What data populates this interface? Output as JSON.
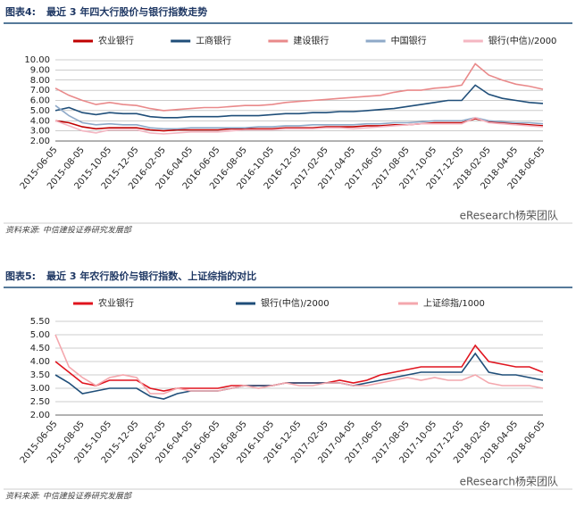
{
  "chart_data": [
    {
      "type": "line",
      "figure_label": "图表4:",
      "title": "最近 3 年四大行股价与银行指数走势",
      "categories": [
        "2015-06-05",
        null,
        "2015-08-05",
        null,
        "2015-10-05",
        null,
        "2015-12-05",
        null,
        "2016-02-05",
        null,
        "2016-04-05",
        null,
        "2016-06-05",
        null,
        "2016-08-05",
        null,
        "2016-10-05",
        null,
        "2016-12-05",
        null,
        "2017-02-05",
        null,
        "2017-04-05",
        null,
        "2017-06-05",
        null,
        "2017-08-05",
        null,
        "2017-10-05",
        null,
        "2017-12-05",
        null,
        "2018-02-05",
        null,
        "2018-04-05",
        null,
        "2018-06-05"
      ],
      "series": [
        {
          "name": "农业银行",
          "color": "#c00000",
          "values": [
            4.0,
            3.8,
            3.4,
            3.2,
            3.3,
            3.3,
            3.3,
            3.1,
            3.0,
            3.1,
            3.1,
            3.1,
            3.1,
            3.2,
            3.2,
            3.2,
            3.2,
            3.3,
            3.3,
            3.3,
            3.4,
            3.4,
            3.4,
            3.5,
            3.5,
            3.6,
            3.6,
            3.7,
            3.8,
            3.8,
            3.8,
            4.2,
            3.9,
            3.8,
            3.7,
            3.6,
            3.5
          ]
        },
        {
          "name": "工商银行",
          "color": "#1f4e79",
          "values": [
            5.0,
            5.3,
            4.8,
            4.6,
            4.8,
            4.7,
            4.7,
            4.4,
            4.3,
            4.3,
            4.4,
            4.4,
            4.4,
            4.5,
            4.5,
            4.5,
            4.6,
            4.7,
            4.7,
            4.8,
            4.8,
            4.9,
            4.9,
            5.0,
            5.1,
            5.2,
            5.4,
            5.6,
            5.8,
            6.0,
            6.0,
            7.5,
            6.6,
            6.2,
            6.0,
            5.8,
            5.7
          ]
        },
        {
          "name": "建设银行",
          "color": "#e9898a",
          "values": [
            7.2,
            6.5,
            6.0,
            5.6,
            5.8,
            5.6,
            5.5,
            5.2,
            5.0,
            5.1,
            5.2,
            5.3,
            5.3,
            5.4,
            5.5,
            5.5,
            5.6,
            5.8,
            5.9,
            6.0,
            6.1,
            6.2,
            6.3,
            6.4,
            6.5,
            6.8,
            7.0,
            7.0,
            7.2,
            7.3,
            7.5,
            9.6,
            8.5,
            8.0,
            7.6,
            7.4,
            7.1
          ]
        },
        {
          "name": "中国银行",
          "color": "#8ea9c8",
          "values": [
            5.5,
            4.5,
            3.8,
            3.6,
            3.7,
            3.6,
            3.6,
            3.3,
            3.2,
            3.2,
            3.3,
            3.3,
            3.3,
            3.3,
            3.3,
            3.4,
            3.4,
            3.5,
            3.5,
            3.6,
            3.6,
            3.6,
            3.6,
            3.7,
            3.7,
            3.8,
            3.8,
            3.9,
            4.0,
            4.0,
            4.0,
            4.3,
            4.0,
            3.9,
            3.8,
            3.8,
            3.7
          ]
        },
        {
          "name": "银行(中信)/2000",
          "color": "#f4b6c2",
          "values": [
            4.0,
            3.5,
            3.0,
            2.8,
            3.1,
            3.1,
            3.1,
            2.8,
            2.7,
            2.8,
            2.9,
            2.9,
            2.9,
            3.0,
            3.1,
            3.1,
            3.1,
            3.2,
            3.2,
            3.2,
            3.3,
            3.3,
            3.2,
            3.3,
            3.4,
            3.5,
            3.6,
            3.7,
            3.7,
            3.7,
            3.7,
            4.3,
            3.8,
            3.7,
            3.6,
            3.5,
            3.4
          ]
        }
      ],
      "ylim": [
        2,
        10
      ],
      "yticks": [
        {
          "value": 2,
          "label": "2.00"
        },
        {
          "value": 3,
          "label": "3.00"
        },
        {
          "value": 4,
          "label": "4.00"
        },
        {
          "value": 5,
          "label": "5.00"
        },
        {
          "value": 6,
          "label": "6.00"
        },
        {
          "value": 7,
          "label": "7.00"
        },
        {
          "value": 8,
          "label": "8.00"
        },
        {
          "value": 9,
          "label": "9.00"
        },
        {
          "value": 10,
          "label": "10.00"
        }
      ],
      "grid": true,
      "source": "资料来源: 中信建投证券研究发展部",
      "watermark": "eResearch杨荣团队"
    },
    {
      "type": "line",
      "figure_label": "图表5:",
      "title": "最近 3 年农行股价与银行指数、上证综指的对比",
      "categories": [
        "2015-06-05",
        null,
        "2015-08-05",
        null,
        "2015-10-05",
        null,
        "2015-12-05",
        null,
        "2016-02-05",
        null,
        "2016-04-05",
        null,
        "2016-06-05",
        null,
        "2016-08-05",
        null,
        "2016-10-05",
        null,
        "2016-12-05",
        null,
        "2017-02-05",
        null,
        "2017-04-05",
        null,
        "2017-06-05",
        null,
        "2017-08-05",
        null,
        "2017-10-05",
        null,
        "2017-12-05",
        null,
        "2018-02-05",
        null,
        "2018-04-05",
        null,
        "2018-06-05"
      ],
      "series": [
        {
          "name": "农业银行",
          "color": "#e0141e",
          "values": [
            4.0,
            3.6,
            3.2,
            3.1,
            3.3,
            3.3,
            3.3,
            3.0,
            2.9,
            3.0,
            3.0,
            3.0,
            3.0,
            3.1,
            3.1,
            3.1,
            3.1,
            3.2,
            3.2,
            3.2,
            3.2,
            3.3,
            3.2,
            3.3,
            3.5,
            3.6,
            3.7,
            3.8,
            3.8,
            3.8,
            3.8,
            4.6,
            4.0,
            3.9,
            3.8,
            3.8,
            3.6
          ]
        },
        {
          "name": "银行(中信)/2000",
          "color": "#1f4e79",
          "values": [
            3.5,
            3.2,
            2.8,
            2.9,
            3.0,
            3.0,
            3.0,
            2.7,
            2.6,
            2.8,
            2.9,
            2.9,
            2.9,
            3.0,
            3.1,
            3.1,
            3.1,
            3.2,
            3.2,
            3.2,
            3.2,
            3.2,
            3.1,
            3.2,
            3.3,
            3.4,
            3.5,
            3.6,
            3.6,
            3.6,
            3.6,
            4.3,
            3.6,
            3.5,
            3.5,
            3.4,
            3.3
          ]
        },
        {
          "name": "上证综指/1000",
          "color": "#f4a7ad",
          "values": [
            5.0,
            3.8,
            3.4,
            3.1,
            3.4,
            3.5,
            3.4,
            2.8,
            2.8,
            3.0,
            2.9,
            2.9,
            2.9,
            3.0,
            3.1,
            3.0,
            3.1,
            3.2,
            3.1,
            3.1,
            3.2,
            3.2,
            3.1,
            3.1,
            3.2,
            3.3,
            3.4,
            3.3,
            3.4,
            3.3,
            3.3,
            3.5,
            3.2,
            3.1,
            3.1,
            3.1,
            3.0
          ]
        }
      ],
      "ylim": [
        2,
        5.5
      ],
      "yticks": [
        {
          "value": 2,
          "label": "2.00"
        },
        {
          "value": 2.5,
          "label": "2.50"
        },
        {
          "value": 3,
          "label": "3.00"
        },
        {
          "value": 3.5,
          "label": "3.50"
        },
        {
          "value": 4,
          "label": "4.00"
        },
        {
          "value": 4.5,
          "label": "4.50"
        },
        {
          "value": 5,
          "label": "5.00"
        },
        {
          "value": 5.5,
          "label": "5.50"
        }
      ],
      "grid": true,
      "source": "资料来源: 中信建投证券研究发展部",
      "watermark": "eResearch杨荣团队"
    }
  ]
}
